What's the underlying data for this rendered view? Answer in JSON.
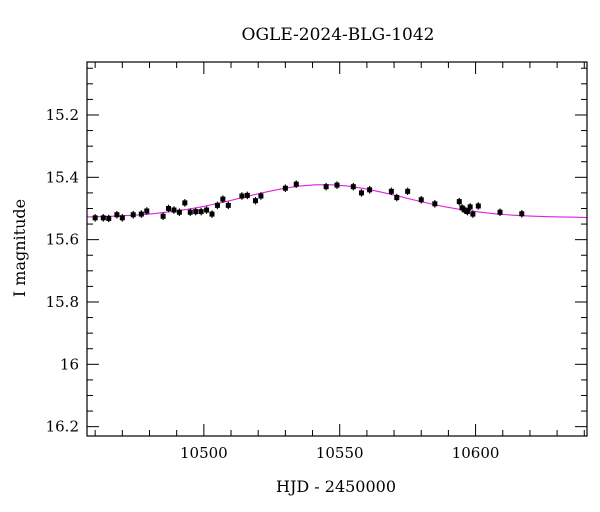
{
  "chart_data": {
    "type": "scatter",
    "title": "OGLE-2024-BLG-1042",
    "xlabel": "HJD - 2450000",
    "ylabel": "I magnitude",
    "xlim": [
      10457,
      10641
    ],
    "ylim": [
      16.23,
      15.03
    ],
    "y_inverted": true,
    "x_major_ticks": [
      10500,
      10550,
      10600
    ],
    "x_tick_labels": [
      "10500",
      "10550",
      "10600"
    ],
    "x_minor_step": 10,
    "y_major_ticks": [
      15.2,
      15.4,
      15.6,
      15.8,
      16.0,
      16.2
    ],
    "y_tick_labels": [
      "15.2",
      "15.4",
      "15.6",
      "15.8",
      "16",
      "16.2"
    ],
    "y_minor_step": 0.05,
    "grid": false,
    "series": [
      {
        "kind": "points",
        "color": "#000000",
        "error": 0.012,
        "x": [
          10460,
          10463,
          10465,
          10468,
          10470,
          10474,
          10477,
          10479,
          10485,
          10487,
          10489,
          10491,
          10493,
          10495,
          10497,
          10499,
          10501,
          10503,
          10505,
          10507,
          10509,
          10514,
          10516,
          10519,
          10521,
          10530,
          10534,
          10545,
          10549,
          10555,
          10558,
          10561,
          10569,
          10571,
          10575,
          10580,
          10585,
          10594,
          10595,
          10596,
          10597,
          10598,
          10599,
          10601,
          10609,
          10617
        ],
        "y": [
          15.53,
          15.53,
          15.532,
          15.52,
          15.53,
          15.52,
          15.518,
          15.508,
          15.525,
          15.5,
          15.505,
          15.512,
          15.482,
          15.512,
          15.51,
          15.51,
          15.505,
          15.518,
          15.49,
          15.47,
          15.49,
          15.46,
          15.458,
          15.475,
          15.46,
          15.435,
          15.422,
          15.43,
          15.425,
          15.43,
          15.45,
          15.44,
          15.445,
          15.465,
          15.445,
          15.472,
          15.485,
          15.478,
          15.498,
          15.505,
          15.51,
          15.495,
          15.518,
          15.492,
          15.512,
          15.517
        ]
      },
      {
        "kind": "model",
        "color": "#e020e0",
        "x": [
          10457,
          10463,
          10469,
          10475,
          10481,
          10487,
          10493,
          10499,
          10505,
          10511,
          10517,
          10523,
          10529,
          10535,
          10541,
          10547,
          10553,
          10559,
          10565,
          10571,
          10577,
          10583,
          10589,
          10595,
          10601,
          10607,
          10613,
          10619,
          10625,
          10631,
          10637,
          10641
        ],
        "y": [
          15.527,
          15.526,
          15.524,
          15.521,
          15.517,
          15.511,
          15.504,
          15.495,
          15.484,
          15.472,
          15.459,
          15.447,
          15.436,
          15.428,
          15.424,
          15.424,
          15.428,
          15.436,
          15.447,
          15.459,
          15.472,
          15.484,
          15.495,
          15.504,
          15.511,
          15.517,
          15.521,
          15.524,
          15.526,
          15.527,
          15.528,
          15.529
        ]
      }
    ]
  }
}
